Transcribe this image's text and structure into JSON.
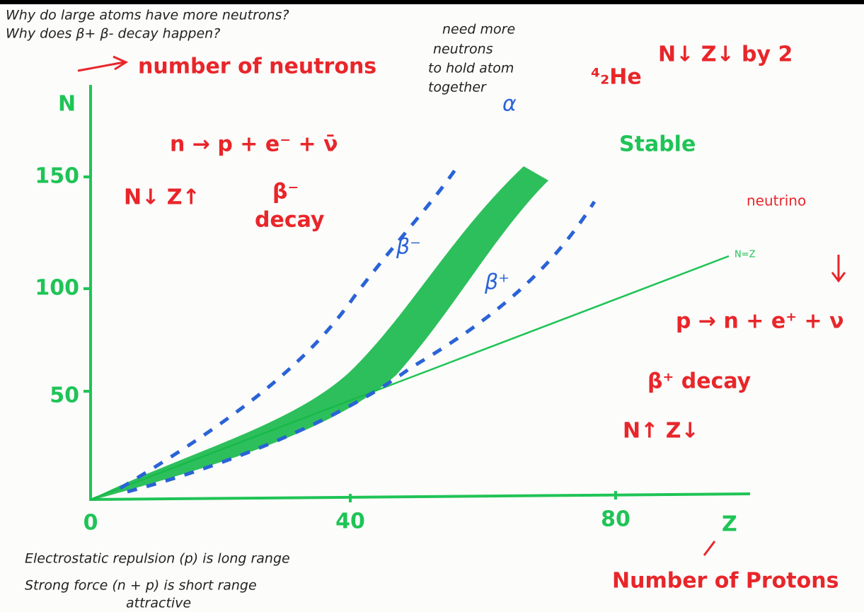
{
  "notes": {
    "question_1": "Why do large atoms have more neutrons?",
    "question_2": "Why does β+ β- decay happen?"
  },
  "axes": {
    "y_label": "N",
    "y_title": "number of neutrons",
    "x_label": "Z",
    "x_title": "Number of Protons",
    "y_ticks": [
      "150",
      "100",
      "50"
    ],
    "x_ticks": [
      "0",
      "40",
      "80"
    ]
  },
  "beta_minus": {
    "equation": "n → p + e⁻ + ν̄",
    "name": "β⁻",
    "decay": "decay",
    "change": "N↓ Z↑"
  },
  "alpha": {
    "note_1": "need more",
    "note_2": "neutrons",
    "note_3": "to hold atom",
    "note_4": "together",
    "symbol": "α",
    "nucleus": "⁴₂He",
    "change": "N↓ Z↓ by 2"
  },
  "band": {
    "stable": "Stable",
    "beta_minus_label": "β⁻",
    "beta_plus_label": "β⁺",
    "n_equals_z": "N=Z"
  },
  "beta_plus": {
    "neutrino": "neutrino",
    "equation": "p → n + e⁺ + ν",
    "decay": "β⁺ decay",
    "change": "N↑ Z↓"
  },
  "footer": {
    "line_1": "Electrostatic repulsion (p) is long range",
    "line_2": "Strong force (n + p) is short range",
    "attractive": "attractive"
  }
}
